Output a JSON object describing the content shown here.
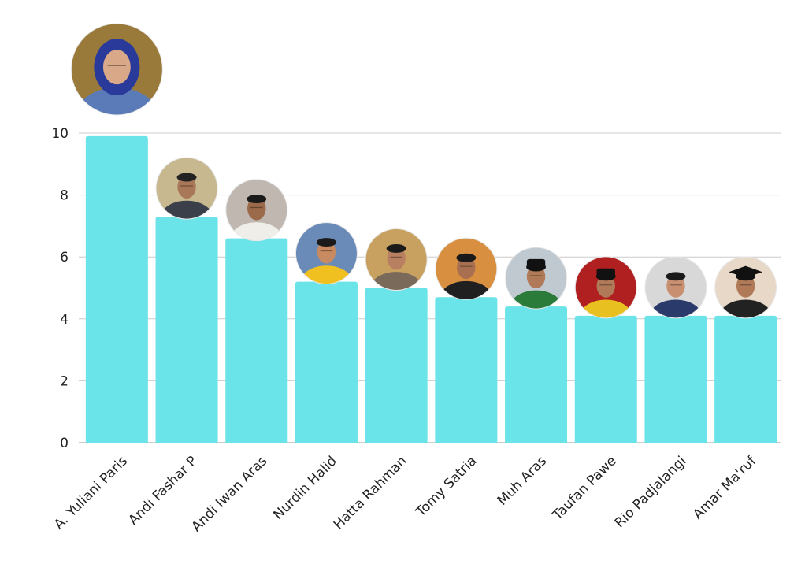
{
  "chart_data": {
    "type": "bar",
    "categories": [
      "A. Yuliani Paris",
      "Andi Fashar P",
      "Andi Iwan Aras",
      "Nurdin Halid",
      "Hatta Rahman",
      "Tomy Satria",
      "Muh Aras",
      "Taufan Pawe",
      "Rio Padjalangi",
      "Amar Ma'ruf"
    ],
    "values": [
      9.9,
      7.3,
      6.6,
      5.2,
      5.0,
      4.7,
      4.4,
      4.1,
      4.1,
      4.1
    ],
    "yticks": [
      "0",
      "2",
      "4",
      "6",
      "8",
      "10"
    ],
    "ylim": [
      0,
      10
    ],
    "grid": true,
    "legend": "none",
    "title": "",
    "xlabel": "",
    "ylabel": "",
    "bar_color": "#6ae4e8",
    "grid_color": "#cccccc",
    "annotations": "portrait photo of each person above their bar"
  }
}
